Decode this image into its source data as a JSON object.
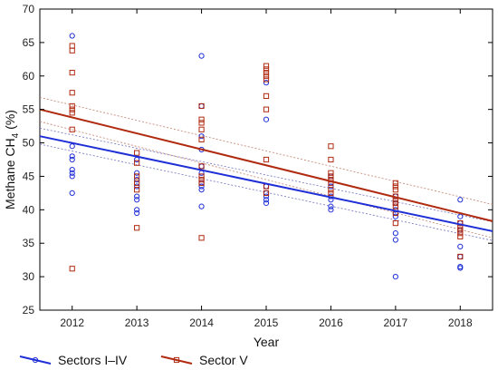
{
  "chart_data": {
    "type": "scatter",
    "xlabel": "Year",
    "ylabel": "Methane CH",
    "ylabel_sub": "4",
    "ylabel_unit": "(%)",
    "xlim": [
      2011.5,
      2018.5
    ],
    "ylim": [
      25,
      70
    ],
    "x_ticks": [
      "2012",
      "2013",
      "2014",
      "2015",
      "2016",
      "2017",
      "2018"
    ],
    "y_ticks": [
      "25",
      "30",
      "35",
      "40",
      "45",
      "50",
      "55",
      "60",
      "65",
      "70"
    ],
    "grid": false,
    "legend_position": "bottom",
    "series": [
      {
        "name": "Sectors I–IV",
        "color": "#1f2fd6",
        "marker": "circle",
        "points": [
          [
            2012,
            66.0
          ],
          [
            2012,
            49.5
          ],
          [
            2012,
            48.0
          ],
          [
            2012,
            47.5
          ],
          [
            2012,
            46.0
          ],
          [
            2012,
            45.5
          ],
          [
            2012,
            45.0
          ],
          [
            2012,
            42.5
          ],
          [
            2013,
            47.5
          ],
          [
            2013,
            45.5
          ],
          [
            2013,
            44.5
          ],
          [
            2013,
            43.5
          ],
          [
            2013,
            42.0
          ],
          [
            2013,
            41.5
          ],
          [
            2013,
            40.0
          ],
          [
            2013,
            39.5
          ],
          [
            2014,
            63.0
          ],
          [
            2014,
            55.5
          ],
          [
            2014,
            51.0
          ],
          [
            2014,
            49.0
          ],
          [
            2014,
            46.5
          ],
          [
            2014,
            45.5
          ],
          [
            2014,
            44.0
          ],
          [
            2014,
            43.5
          ],
          [
            2014,
            43.0
          ],
          [
            2014,
            40.5
          ],
          [
            2015,
            59.0
          ],
          [
            2015,
            53.5
          ],
          [
            2015,
            43.5
          ],
          [
            2015,
            42.5
          ],
          [
            2015,
            42.0
          ],
          [
            2015,
            41.5
          ],
          [
            2015,
            41.0
          ],
          [
            2016,
            45.0
          ],
          [
            2016,
            44.0
          ],
          [
            2016,
            43.5
          ],
          [
            2016,
            42.0
          ],
          [
            2016,
            41.5
          ],
          [
            2016,
            40.5
          ],
          [
            2016,
            40.0
          ],
          [
            2017,
            42.0
          ],
          [
            2017,
            41.0
          ],
          [
            2017,
            40.0
          ],
          [
            2017,
            39.5
          ],
          [
            2017,
            39.0
          ],
          [
            2017,
            36.5
          ],
          [
            2017,
            35.5
          ],
          [
            2017,
            30.0
          ],
          [
            2018,
            41.5
          ],
          [
            2018,
            39.0
          ],
          [
            2018,
            38.0
          ],
          [
            2018,
            37.0
          ],
          [
            2018,
            34.5
          ],
          [
            2018,
            33.0
          ],
          [
            2018,
            31.5
          ],
          [
            2018,
            31.3
          ]
        ],
        "fit": {
          "x": [
            2011.5,
            2018.5
          ],
          "y": [
            51.0,
            36.8
          ]
        }
      },
      {
        "name": "Sector V",
        "color": "#b02a10",
        "marker": "square",
        "points": [
          [
            2012,
            64.5
          ],
          [
            2012,
            63.8
          ],
          [
            2012,
            60.5
          ],
          [
            2012,
            57.5
          ],
          [
            2012,
            55.5
          ],
          [
            2012,
            55.0
          ],
          [
            2012,
            54.5
          ],
          [
            2012,
            52.0
          ],
          [
            2012,
            31.2
          ],
          [
            2013,
            48.5
          ],
          [
            2013,
            47.0
          ],
          [
            2013,
            45.0
          ],
          [
            2013,
            44.0
          ],
          [
            2013,
            43.0
          ],
          [
            2013,
            37.3
          ],
          [
            2014,
            55.5
          ],
          [
            2014,
            53.5
          ],
          [
            2014,
            53.0
          ],
          [
            2014,
            52.0
          ],
          [
            2014,
            50.5
          ],
          [
            2014,
            46.5
          ],
          [
            2014,
            45.0
          ],
          [
            2014,
            44.5
          ],
          [
            2014,
            44.0
          ],
          [
            2014,
            35.8
          ],
          [
            2015,
            61.5
          ],
          [
            2015,
            61.0
          ],
          [
            2015,
            60.5
          ],
          [
            2015,
            60.0
          ],
          [
            2015,
            59.5
          ],
          [
            2015,
            57.0
          ],
          [
            2015,
            55.0
          ],
          [
            2015,
            47.5
          ],
          [
            2015,
            43.5
          ],
          [
            2015,
            42.5
          ],
          [
            2016,
            49.5
          ],
          [
            2016,
            47.5
          ],
          [
            2016,
            45.5
          ],
          [
            2016,
            45.0
          ],
          [
            2016,
            44.5
          ],
          [
            2016,
            44.0
          ],
          [
            2016,
            43.0
          ],
          [
            2016,
            42.5
          ],
          [
            2017,
            44.0
          ],
          [
            2017,
            43.5
          ],
          [
            2017,
            43.0
          ],
          [
            2017,
            42.0
          ],
          [
            2017,
            41.5
          ],
          [
            2017,
            41.0
          ],
          [
            2017,
            40.5
          ],
          [
            2017,
            39.5
          ],
          [
            2017,
            38.0
          ],
          [
            2018,
            38.0
          ],
          [
            2018,
            37.5
          ],
          [
            2018,
            37.0
          ],
          [
            2018,
            36.5
          ],
          [
            2018,
            36.0
          ],
          [
            2018,
            33.0
          ]
        ],
        "fit": {
          "x": [
            2011.5,
            2018.5
          ],
          "y": [
            55.0,
            38.3
          ]
        }
      }
    ],
    "confidence_bands": [
      {
        "series": "Sectors I–IV",
        "color": "#7070c0",
        "upper": [
          52.2,
          38.2
        ],
        "lower": [
          49.8,
          35.4
        ]
      },
      {
        "series": "Sector V",
        "color": "#c08070",
        "upper": [
          56.8,
          40.8
        ],
        "lower": [
          53.2,
          35.8
        ]
      }
    ]
  }
}
